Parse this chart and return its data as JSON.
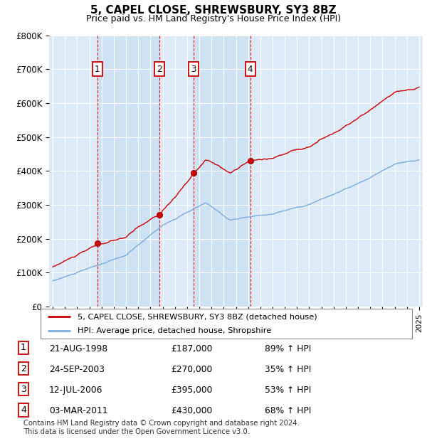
{
  "title": "5, CAPEL CLOSE, SHREWSBURY, SY3 8BZ",
  "subtitle": "Price paid vs. HM Land Registry's House Price Index (HPI)",
  "ylim": [
    0,
    800000
  ],
  "yticks": [
    0,
    100000,
    200000,
    300000,
    400000,
    500000,
    600000,
    700000,
    800000
  ],
  "ytick_labels": [
    "£0",
    "£100K",
    "£200K",
    "£300K",
    "£400K",
    "£500K",
    "£600K",
    "£700K",
    "£800K"
  ],
  "hpi_color": "#7aabdc",
  "price_color": "#cc0000",
  "bg_color": "#ddeaf7",
  "shade_color": "#c8dff2",
  "sales": [
    {
      "date": 1998.64,
      "price": 187000,
      "label": "1"
    },
    {
      "date": 2003.73,
      "price": 270000,
      "label": "2"
    },
    {
      "date": 2006.53,
      "price": 395000,
      "label": "3"
    },
    {
      "date": 2011.17,
      "price": 430000,
      "label": "4"
    }
  ],
  "transactions": [
    {
      "num": "1",
      "date": "21-AUG-1998",
      "price": "£187,000",
      "hpi": "89% ↑ HPI"
    },
    {
      "num": "2",
      "date": "24-SEP-2003",
      "price": "£270,000",
      "hpi": "35% ↑ HPI"
    },
    {
      "num": "3",
      "date": "12-JUL-2006",
      "price": "£395,000",
      "hpi": "53% ↑ HPI"
    },
    {
      "num": "4",
      "date": "03-MAR-2011",
      "price": "£430,000",
      "hpi": "68% ↑ HPI"
    }
  ],
  "legend_label_price": "5, CAPEL CLOSE, SHREWSBURY, SY3 8BZ (detached house)",
  "legend_label_hpi": "HPI: Average price, detached house, Shropshire",
  "footnote": "Contains HM Land Registry data © Crown copyright and database right 2024.\nThis data is licensed under the Open Government Licence v3.0."
}
